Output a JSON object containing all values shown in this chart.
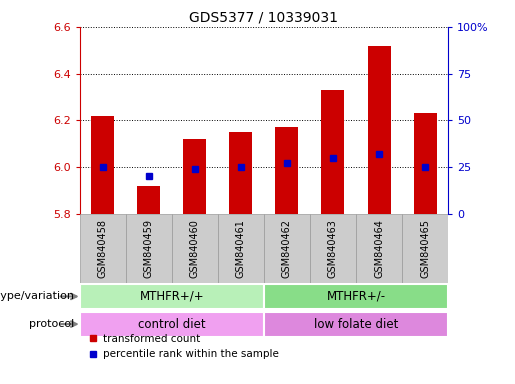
{
  "title": "GDS5377 / 10339031",
  "samples": [
    "GSM840458",
    "GSM840459",
    "GSM840460",
    "GSM840461",
    "GSM840462",
    "GSM840463",
    "GSM840464",
    "GSM840465"
  ],
  "red_values": [
    6.22,
    5.92,
    6.12,
    6.15,
    6.17,
    6.33,
    6.52,
    6.23
  ],
  "blue_values": [
    25,
    20,
    24,
    25,
    27,
    30,
    32,
    25
  ],
  "ylim_left": [
    5.8,
    6.6
  ],
  "ylim_right": [
    0,
    100
  ],
  "yticks_left": [
    5.8,
    6.0,
    6.2,
    6.4,
    6.6
  ],
  "yticks_right": [
    0,
    25,
    50,
    75,
    100
  ],
  "bar_bottom": 5.8,
  "bar_color": "#cc0000",
  "dot_color": "#0000cc",
  "genotype_groups": [
    {
      "label": "MTHFR+/+",
      "start": 0,
      "end": 4,
      "color": "#b8f0b8"
    },
    {
      "label": "MTHFR+/-",
      "start": 4,
      "end": 8,
      "color": "#88dd88"
    }
  ],
  "protocol_groups": [
    {
      "label": "control diet",
      "start": 0,
      "end": 4,
      "color": "#f0a0f0"
    },
    {
      "label": "low folate diet",
      "start": 4,
      "end": 8,
      "color": "#dd88dd"
    }
  ],
  "legend_red_label": "transformed count",
  "legend_blue_label": "percentile rank within the sample",
  "label_genotype": "genotype/variation",
  "label_protocol": "protocol",
  "tick_color_left": "#cc0000",
  "tick_color_right": "#0000cc",
  "xtick_bg_color": "#cccccc",
  "xtick_border_color": "#999999"
}
